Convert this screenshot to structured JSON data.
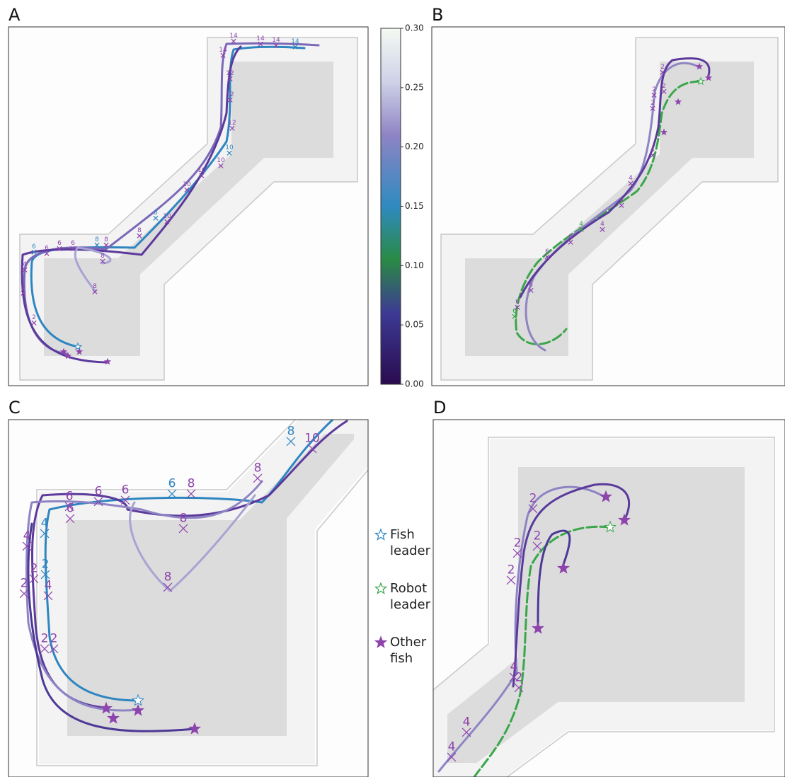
{
  "panels": [
    {
      "label": "A",
      "time_labels": [
        "14",
        "14",
        "14",
        "14",
        "14",
        "12",
        "12",
        "12",
        "10",
        "10",
        "10",
        "10",
        "10",
        "8",
        "8",
        "8",
        "8",
        "8",
        "8",
        "6",
        "6",
        "6",
        "6",
        "4",
        "2",
        "2"
      ]
    },
    {
      "label": "B",
      "time_labels": [
        "2",
        "2",
        "2",
        "2",
        "4",
        "4",
        "4",
        "4",
        "4",
        "6",
        "6",
        "6",
        "6",
        "6"
      ]
    },
    {
      "label": "C",
      "time_labels": [
        "8",
        "10",
        "8",
        "6",
        "6",
        "6",
        "6",
        "8",
        "8",
        "8",
        "6",
        "4",
        "4",
        "2",
        "2",
        "4",
        "2",
        "2",
        "2"
      ]
    },
    {
      "label": "D",
      "time_labels": [
        "2",
        "2",
        "2",
        "2",
        "4",
        "2",
        "4",
        "4"
      ]
    }
  ],
  "colorbar": {
    "lim": [
      0,
      0.3
    ],
    "ticks": [
      {
        "value": 0,
        "label": "0.00"
      },
      {
        "value": 0.05,
        "label": "0.05"
      },
      {
        "value": 0.1,
        "label": "0.10"
      },
      {
        "value": 0.15,
        "label": "0.15"
      },
      {
        "value": 0.2,
        "label": "0.20"
      },
      {
        "value": 0.25,
        "label": "0.25"
      },
      {
        "value": 0.3,
        "label": "0.30"
      }
    ]
  },
  "legend": [
    {
      "label": "Fish leader",
      "color": "#2e86c1",
      "filled": false
    },
    {
      "label": "Robot leader",
      "color": "#3aa64a",
      "filled": false
    },
    {
      "label": "Other fish",
      "color": "#8e44ad",
      "filled": true
    }
  ]
}
